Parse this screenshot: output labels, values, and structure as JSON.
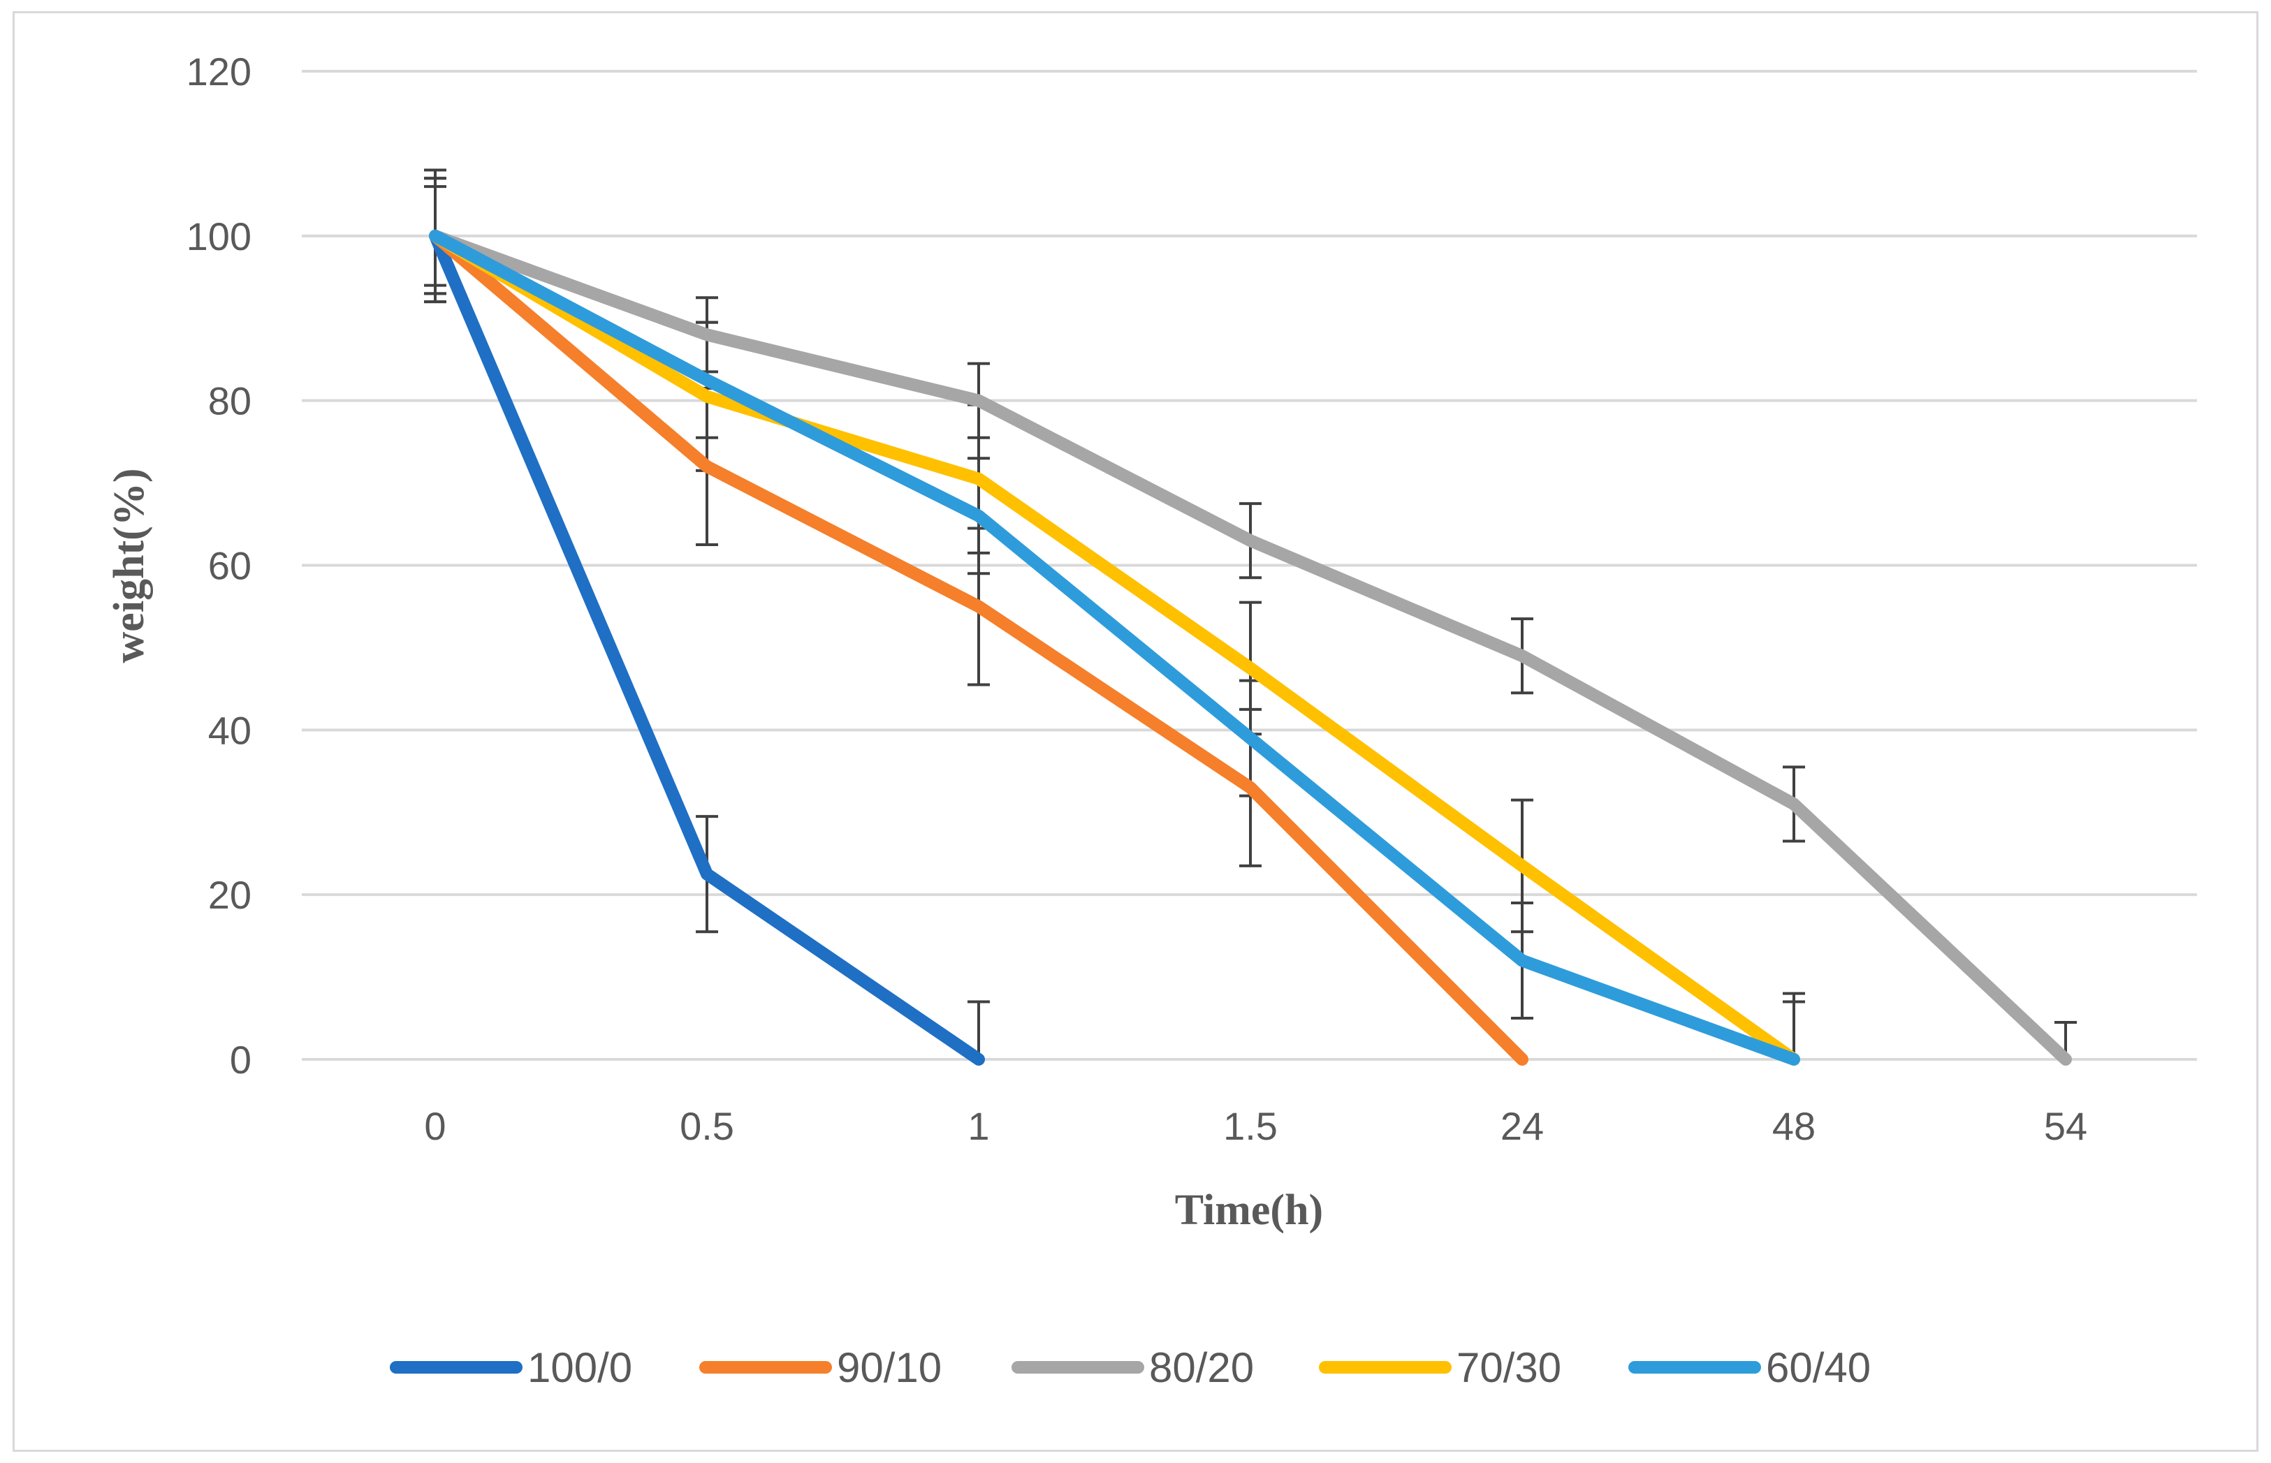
{
  "chart_data": {
    "type": "line",
    "title": "",
    "xlabel": "Time(h)",
    "ylabel": "weight(%)",
    "categories": [
      "0",
      "0.5",
      "1",
      "1.5",
      "24",
      "48",
      "54"
    ],
    "ylim": [
      0,
      120
    ],
    "yticks": [
      "0",
      "20",
      "40",
      "60",
      "80",
      "100",
      "120"
    ],
    "grid": "horizontal",
    "legend_position": "bottom",
    "series": [
      {
        "name": "100/0",
        "color": "#1F6FC5",
        "values": [
          100,
          22.5,
          0,
          null,
          null,
          null,
          null
        ],
        "errors": [
          8,
          7,
          7,
          null,
          null,
          null,
          null
        ]
      },
      {
        "name": "90/10",
        "color": "#F57F2A",
        "values": [
          100,
          72,
          55,
          33,
          0,
          null,
          null
        ],
        "errors": [
          8,
          9.5,
          9.5,
          9.5,
          null,
          null,
          null
        ]
      },
      {
        "name": "80/20",
        "color": "#A6A6A6",
        "values": [
          100,
          88,
          80,
          63,
          49,
          31,
          0
        ],
        "errors": [
          7,
          4.5,
          4.5,
          4.5,
          4.5,
          4.5,
          4.5
        ]
      },
      {
        "name": "70/30",
        "color": "#FFC000",
        "values": [
          100,
          80.5,
          70.5,
          47.5,
          23.5,
          0,
          null
        ],
        "errors": [
          7,
          9,
          9,
          8,
          8,
          8,
          null
        ]
      },
      {
        "name": "60/40",
        "color": "#2E9CDB",
        "values": [
          100,
          82.5,
          66,
          39,
          12,
          0,
          null
        ],
        "errors": [
          6,
          7,
          7,
          7,
          7,
          7,
          null
        ]
      }
    ]
  }
}
